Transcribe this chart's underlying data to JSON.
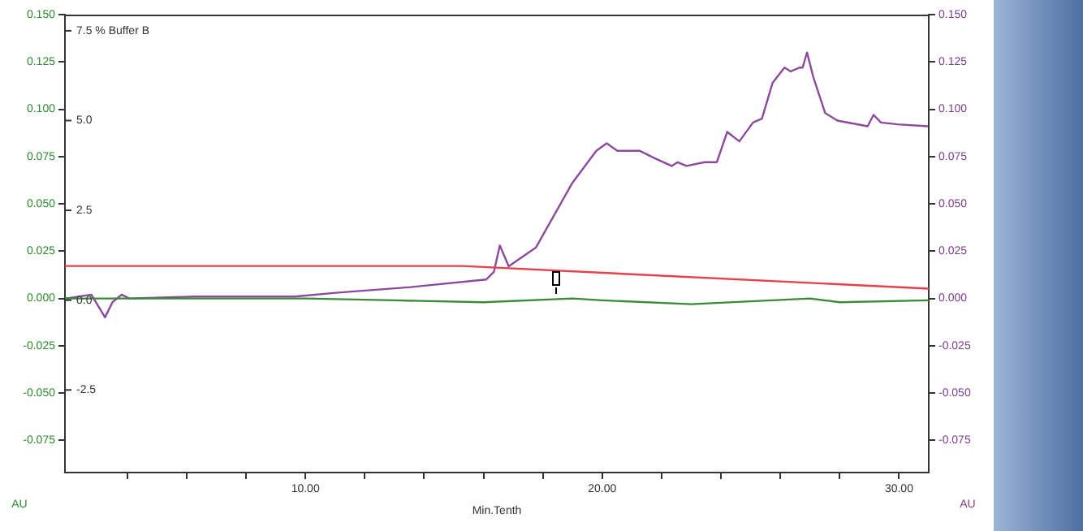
{
  "chart_data": {
    "type": "line",
    "xlabel": "Min.Tenth",
    "ylabel": "AU",
    "y2label": "AU",
    "xlim": [
      1.9,
      31.0
    ],
    "xticks": [
      {
        "value": 4,
        "label": null
      },
      {
        "value": 6,
        "label": null
      },
      {
        "value": 8,
        "label": null
      },
      {
        "value": 10,
        "label": "10.00"
      },
      {
        "value": 12,
        "label": null
      },
      {
        "value": 14,
        "label": null
      },
      {
        "value": 16,
        "label": null
      },
      {
        "value": 18,
        "label": null
      },
      {
        "value": 20,
        "label": "20.00"
      },
      {
        "value": 22,
        "label": null
      },
      {
        "value": 24,
        "label": null
      },
      {
        "value": 26,
        "label": null
      },
      {
        "value": 28,
        "label": null
      },
      {
        "value": 30,
        "label": "30.00"
      }
    ],
    "ylim": [
      -0.092,
      0.15
    ],
    "yticks": [
      {
        "value": -0.075,
        "label": "-0.075"
      },
      {
        "value": -0.05,
        "label": "-0.050"
      },
      {
        "value": -0.025,
        "label": "-0.025"
      },
      {
        "value": 0,
        "label": "0.000"
      },
      {
        "value": 0.025,
        "label": "0.025"
      },
      {
        "value": 0.05,
        "label": "0.050"
      },
      {
        "value": 0.075,
        "label": "0.075"
      },
      {
        "value": 0.1,
        "label": "0.100"
      },
      {
        "value": 0.125,
        "label": "0.125"
      },
      {
        "value": 0.15,
        "label": "0.150"
      }
    ],
    "y2lim": [
      -0.092,
      0.15
    ],
    "y2ticks": [
      {
        "value": -0.075,
        "label": "-0.075"
      },
      {
        "value": -0.05,
        "label": "-0.050"
      },
      {
        "value": -0.025,
        "label": "-0.025"
      },
      {
        "value": 0,
        "label": "0.000"
      },
      {
        "value": 0.025,
        "label": "0.025"
      },
      {
        "value": 0.05,
        "label": "0.050"
      },
      {
        "value": 0.075,
        "label": "0.075"
      },
      {
        "value": 0.1,
        "label": "0.100"
      },
      {
        "value": 0.125,
        "label": "0.125"
      },
      {
        "value": 0.15,
        "label": "0.150"
      }
    ],
    "y3lim": [
      -4.8,
      7.95
    ],
    "y3ticks": [
      {
        "value": -2.5,
        "label": "-2.5"
      },
      {
        "value": 0,
        "label": "0.0"
      },
      {
        "value": 2.5,
        "label": "2.5"
      },
      {
        "value": 5,
        "label": "5.0"
      },
      {
        "value": 7.5,
        "label": "7.5 % Buffer B"
      }
    ],
    "grid": false,
    "legend": false,
    "marker": "none",
    "line_style": "solid",
    "series": [
      {
        "color": "#e8404a",
        "axis": "y3",
        "x": [
          1.9,
          15.3,
          31.0
        ],
        "values": [
          0.95,
          0.95,
          0.32
        ]
      },
      {
        "color": "#3a8a3a",
        "axis": "y",
        "x": [
          1.9,
          10,
          13,
          16,
          19,
          20,
          23,
          27,
          28,
          31
        ],
        "values": [
          0,
          0,
          -0.001,
          -0.002,
          0,
          -0.001,
          -0.003,
          0,
          -0.002,
          -0.001
        ]
      },
      {
        "color": "#8b4a9c",
        "axis": "y2",
        "x": [
          1.93,
          2.79,
          3.25,
          3.5,
          3.81,
          4.06,
          6.3,
          9.65,
          11.02,
          13.55,
          16.09,
          16.35,
          16.55,
          16.85,
          17.77,
          18.99,
          19.8,
          20.15,
          20.51,
          21.27,
          21.78,
          22.34,
          22.54,
          22.84,
          23.45,
          23.86,
          24.21,
          24.62,
          25.08,
          25.38,
          25.74,
          26.14,
          26.35,
          26.65,
          26.75,
          26.9,
          27.11,
          27.51,
          27.92,
          28.94,
          29.14,
          29.39,
          29.95,
          30.97
        ],
        "values": [
          0,
          0.002,
          -0.01,
          -0.002,
          0.002,
          0,
          0.001,
          0.001,
          0.003,
          0.006,
          0.01,
          0.014,
          0.028,
          0.017,
          0.027,
          0.061,
          0.078,
          0.082,
          0.078,
          0.078,
          0.074,
          0.07,
          0.072,
          0.07,
          0.072,
          0.072,
          0.088,
          0.083,
          0.093,
          0.095,
          0.114,
          0.122,
          0.12,
          0.122,
          0.122,
          0.13,
          0.117,
          0.098,
          0.094,
          0.091,
          0.097,
          0.093,
          0.092,
          0.091
        ]
      }
    ]
  }
}
